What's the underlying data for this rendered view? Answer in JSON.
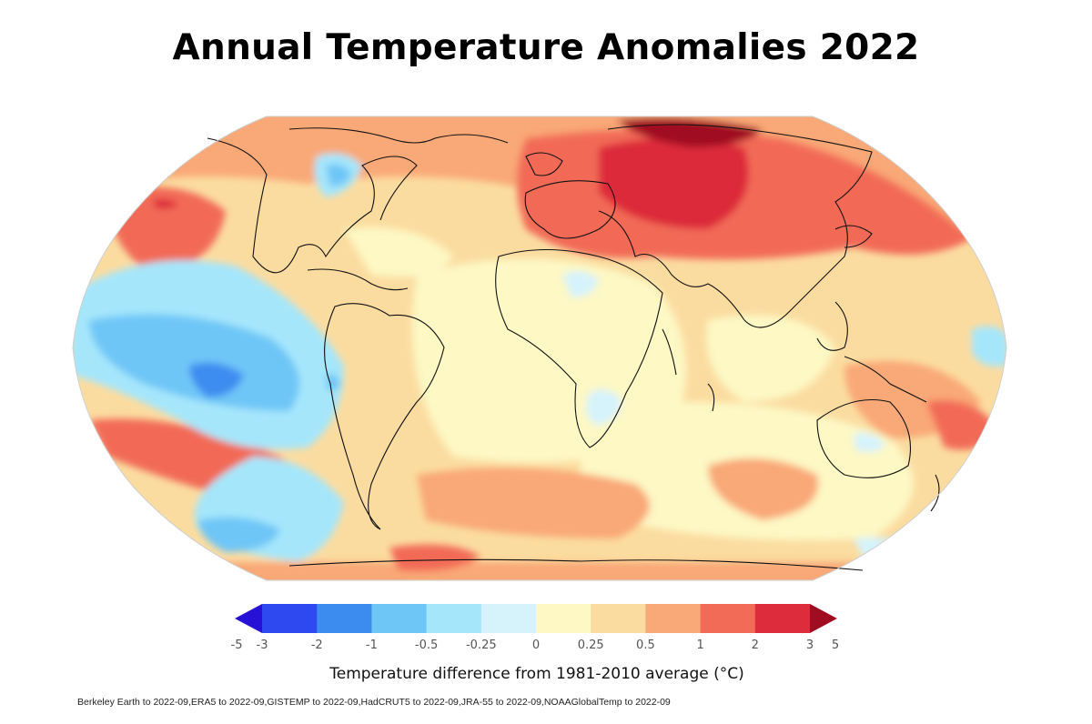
{
  "title": "Annual Temperature Anomalies 2022",
  "map": {
    "projection": "robinson",
    "field": "2022 annual temperature anomaly",
    "coastlines": true
  },
  "legend": {
    "label": "Temperature difference from 1981-2010 average (°C)",
    "ticks": [
      "-5",
      "-3",
      "-2",
      "-1",
      "-0.5",
      "-0.25",
      "0",
      "0.25",
      "0.5",
      "1",
      "2",
      "3",
      "5"
    ],
    "colors": [
      "#2811d6",
      "#2f49f0",
      "#3c8cf0",
      "#6ec6f7",
      "#a5e6fb",
      "#d6f3fb",
      "#fdf8c4",
      "#fbdca0",
      "#f9a877",
      "#f26b57",
      "#dd2c3b",
      "#a00c22"
    ],
    "extend": "both"
  },
  "sources": "Berkeley Earth to 2022-09,ERA5 to 2022-09,GISTEMP to 2022-09,HadCRUT5 to 2022-09,JRA-55 to 2022-09,NOAAGlobalTemp to 2022-09"
}
